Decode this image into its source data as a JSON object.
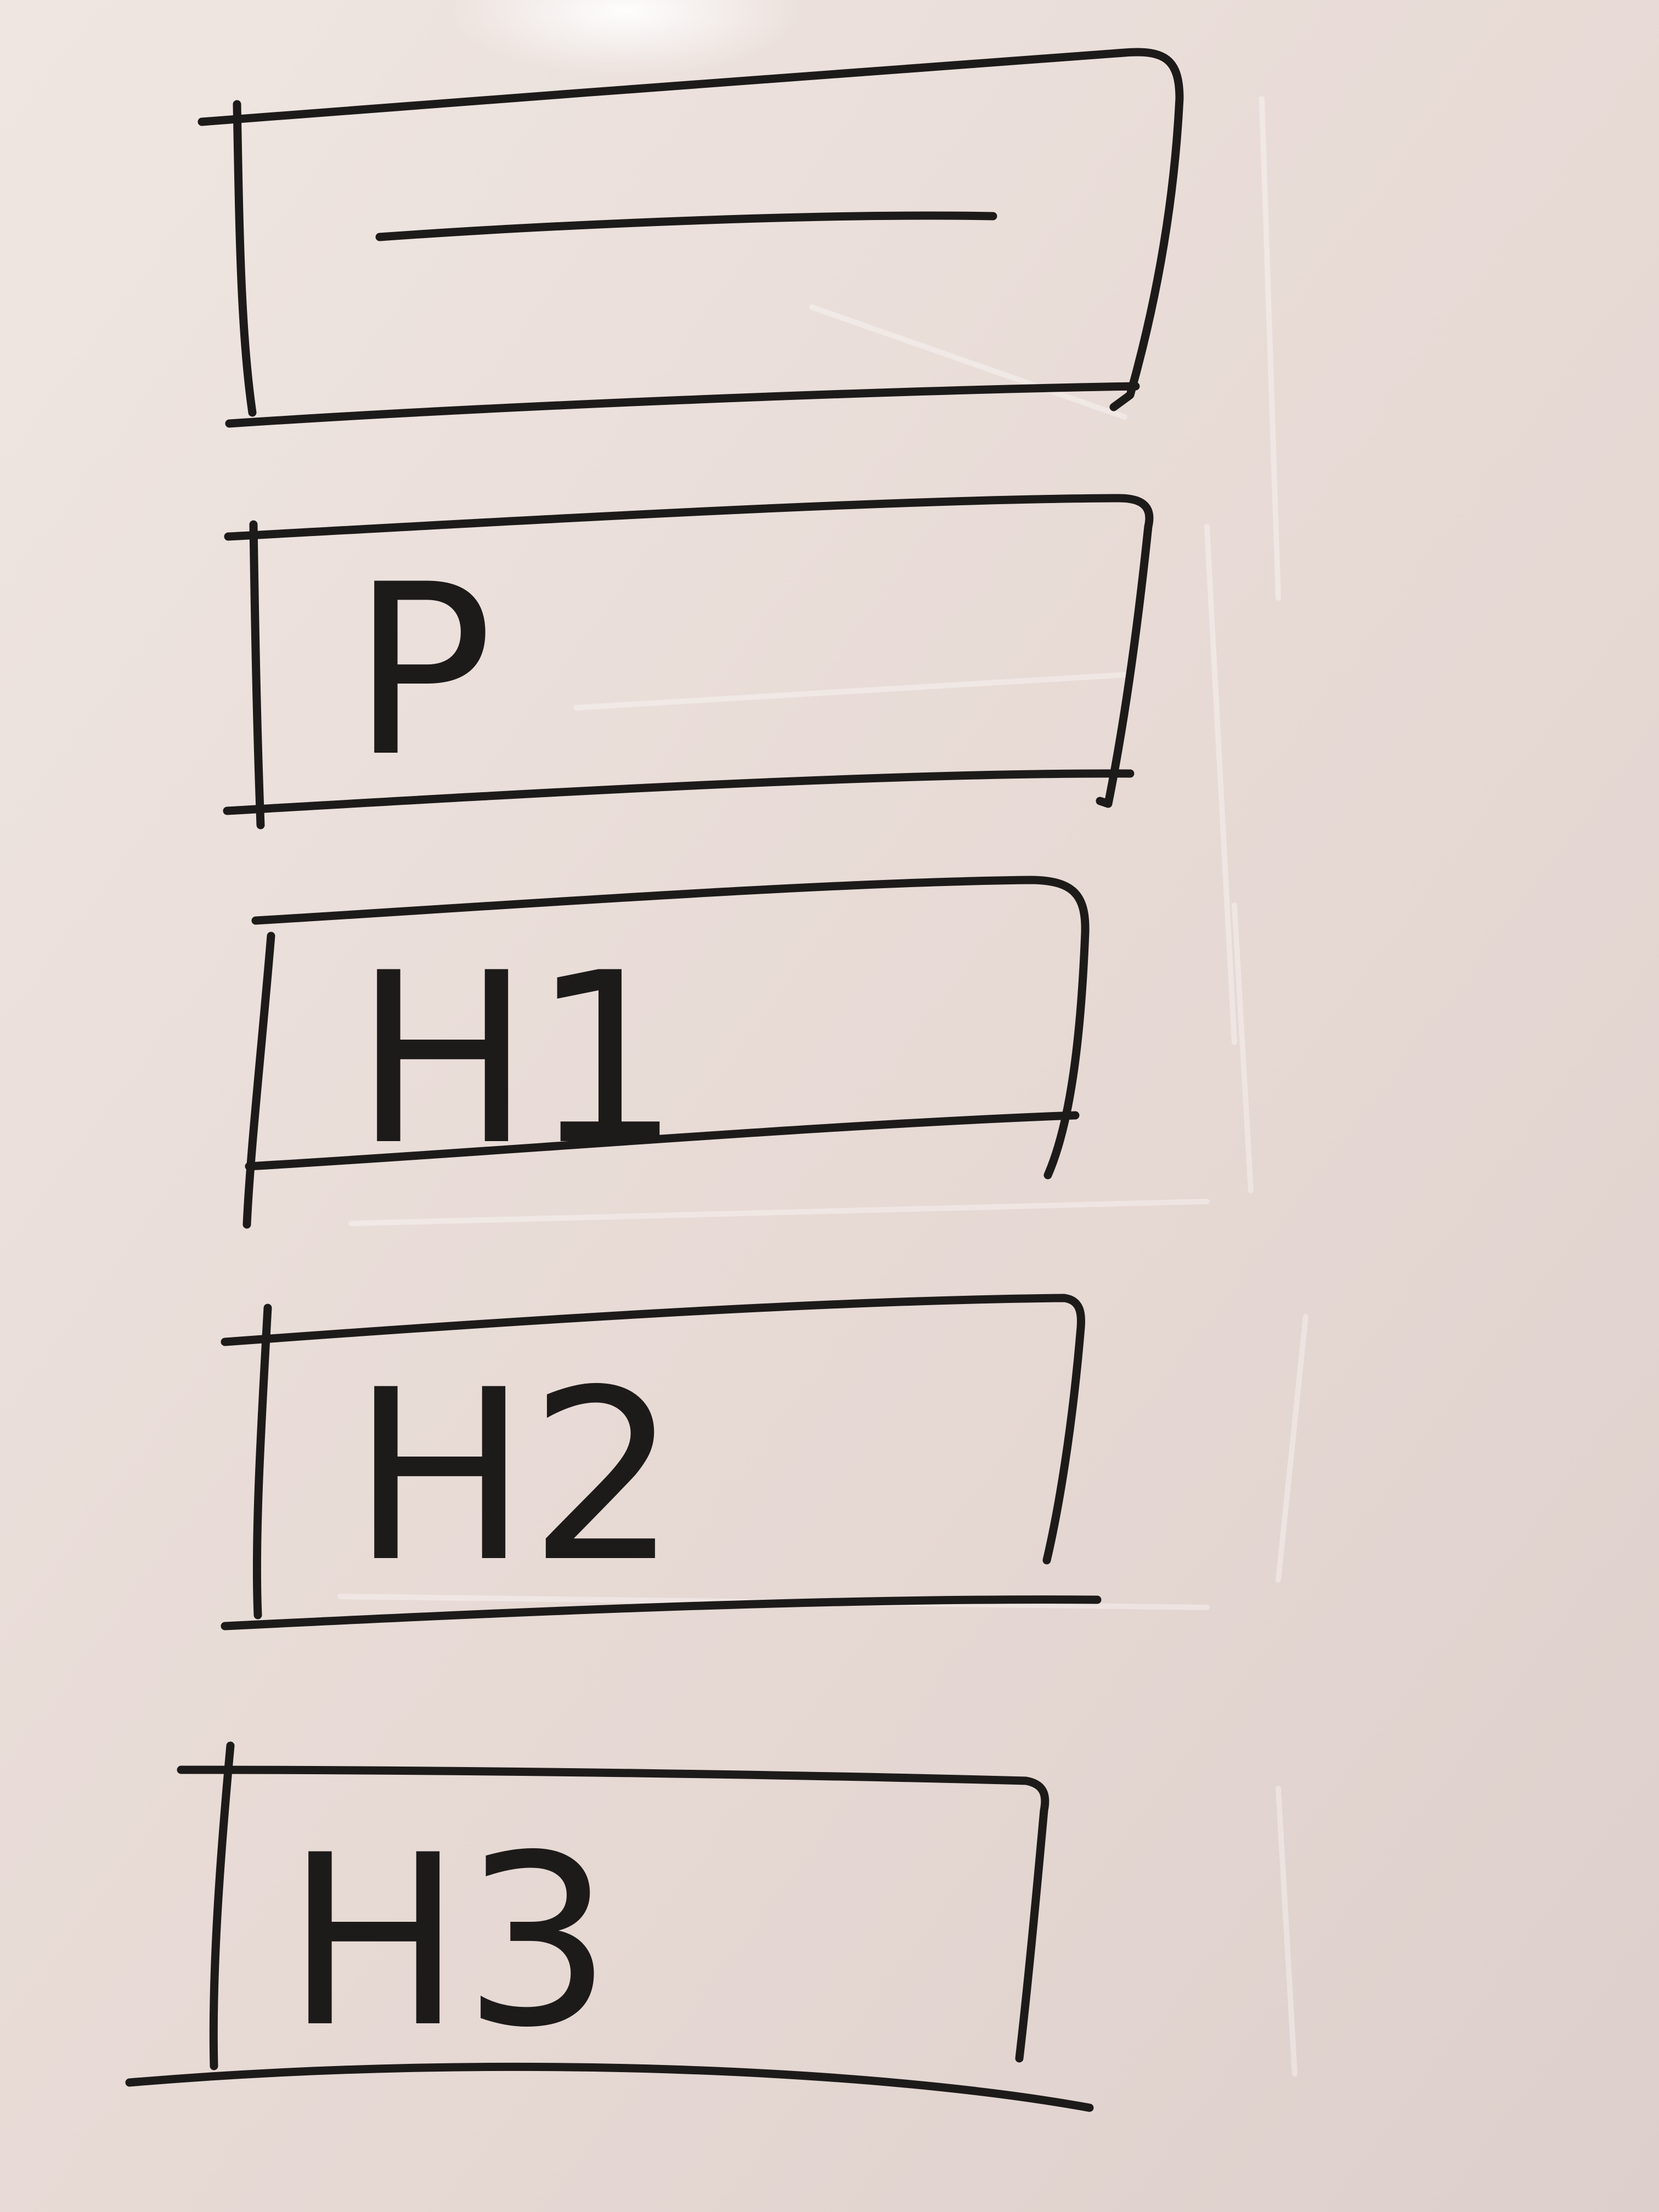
{
  "board": {
    "surface_color": "#e9ddd8",
    "marker_color": "#1d1b1a",
    "boxes": [
      {
        "kind": "text-line-placeholder",
        "label": ""
      },
      {
        "kind": "letter",
        "label": "P"
      },
      {
        "kind": "letter",
        "label": "H1"
      },
      {
        "kind": "letter",
        "label": "H2"
      },
      {
        "kind": "letter",
        "label": "H3"
      }
    ]
  }
}
